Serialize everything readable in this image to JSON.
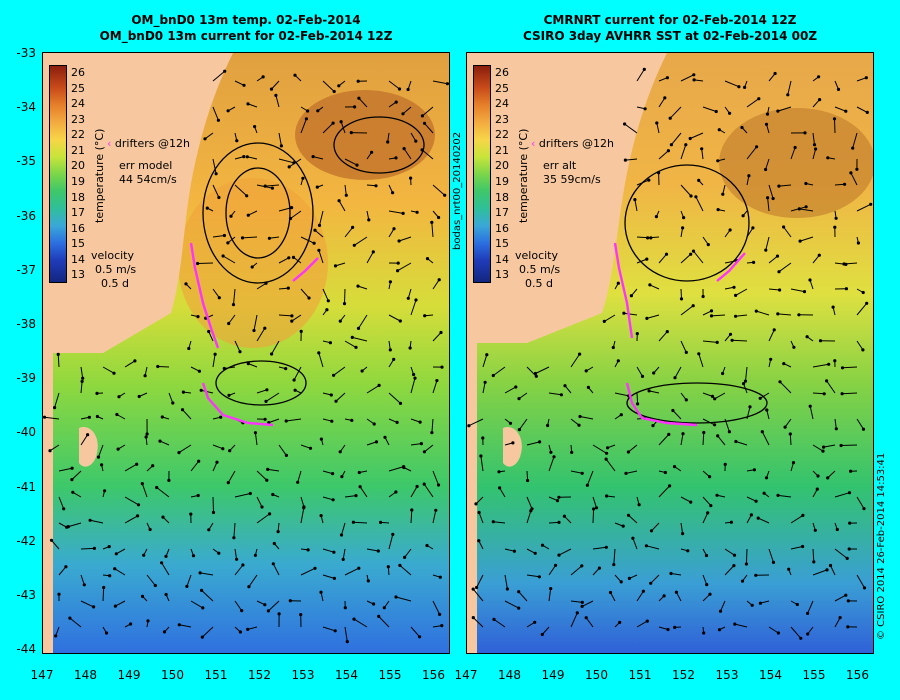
{
  "left_panel": {
    "title_line1": "OM_bnD0 13m temp. 02-Feb-2014",
    "title_line2": "OM_bnD0 13m current for 02-Feb-2014 12Z",
    "legend_drifters": "drifters @12h",
    "legend_err_label": "err model",
    "legend_err_value": "44 54cm/s",
    "velocity_label": "velocity",
    "velocity_scale": "0.5 m/s",
    "velocity_time": "0.5 d",
    "colorbar_unit": "temperature (°C)"
  },
  "right_panel": {
    "title_line1": "CMRNRT current for 02-Feb-2014 12Z",
    "title_line2": "CSIRO 3day AVHRR SST at 02-Feb-2014 00Z",
    "legend_drifters": "drifters @12h",
    "legend_err_label": "err alt",
    "legend_err_value": "35 59cm/s",
    "velocity_label": "velocity",
    "velocity_scale": "0.5 m/s",
    "velocity_time": "0.5 d",
    "colorbar_unit": "temperature (°C)"
  },
  "colorbar_ticks": [
    "26",
    "25",
    "24",
    "23",
    "22",
    "21",
    "20",
    "19",
    "18",
    "17",
    "16",
    "15",
    "14",
    "13"
  ],
  "y_ticks": [
    "-33",
    "-34",
    "-35",
    "-36",
    "-37",
    "-38",
    "-39",
    "-40",
    "-41",
    "-42",
    "-43",
    "-44"
  ],
  "x_ticks": [
    "147",
    "148",
    "149",
    "150",
    "151",
    "152",
    "153",
    "154",
    "155",
    "156"
  ],
  "side_label_vertical": "bodas_nrt00_20140202",
  "credit_vertical": "© CSIRO 2014   26-Feb-2014 14:53:41",
  "colors": {
    "background": "#00ffff",
    "land": "#f7c8a0",
    "drifter": "#ff33ff"
  }
}
